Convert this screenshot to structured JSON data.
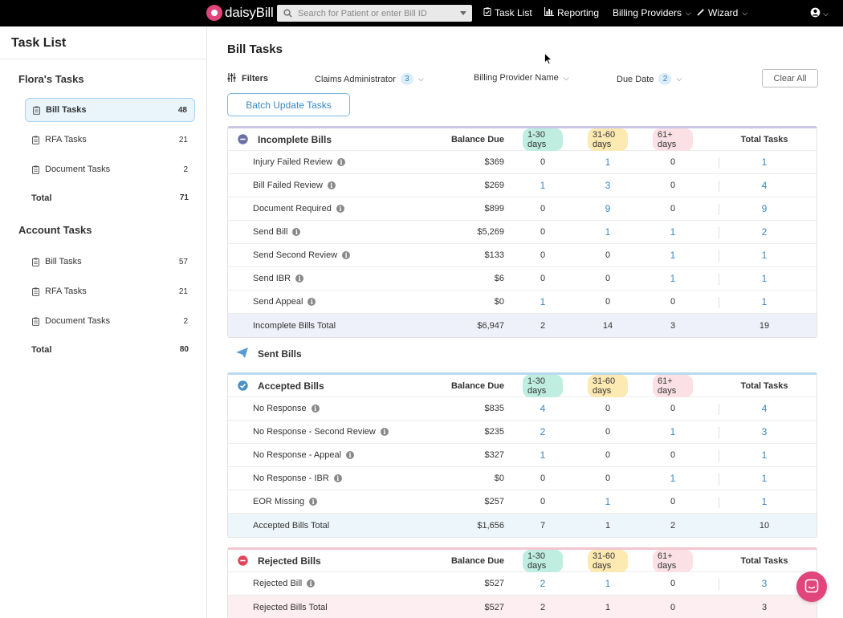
{
  "brand": {
    "name": "daisyBill",
    "color": "#e0457b"
  },
  "search": {
    "placeholder": "Search for Patient or enter Bill ID"
  },
  "nav": {
    "task_list": "Task List",
    "reporting": "Reporting",
    "billing_providers": "Billing Providers",
    "wizard": "Wizard"
  },
  "sidebar": {
    "title": "Task List",
    "floras": {
      "heading": "Flora's Tasks",
      "items": [
        {
          "label": "Bill Tasks",
          "count": "48"
        },
        {
          "label": "RFA Tasks",
          "count": "21"
        },
        {
          "label": "Document Tasks",
          "count": "2"
        }
      ],
      "total_label": "Total",
      "total": "71"
    },
    "account": {
      "heading": "Account Tasks",
      "items": [
        {
          "label": "Bill Tasks",
          "count": "57"
        },
        {
          "label": "RFA Tasks",
          "count": "21"
        },
        {
          "label": "Document Tasks",
          "count": "2"
        }
      ],
      "total_label": "Total",
      "total": "80"
    }
  },
  "main": {
    "title": "Bill Tasks",
    "filters_label": "Filters",
    "filters": [
      {
        "label": "Claims Administrator",
        "badge": "3"
      },
      {
        "label": "Billing Provider Name",
        "badge": ""
      },
      {
        "label": "Due Date",
        "badge": "2"
      }
    ],
    "clear_all": "Clear All",
    "batch_update": "Batch Update Tasks"
  },
  "columns": {
    "balance": "Balance Due",
    "a": "1-30 days",
    "b": "31-60 days",
    "c": "61+ days",
    "total": "Total Tasks"
  },
  "incomplete": {
    "title": "Incomplete Bills",
    "rows": [
      {
        "name": "Injury Failed Review",
        "balance": "$369",
        "a": "0",
        "b": "1",
        "c": "0",
        "total": "1"
      },
      {
        "name": "Bill Failed Review",
        "balance": "$269",
        "a": "1",
        "b": "3",
        "c": "0",
        "total": "4"
      },
      {
        "name": "Document Required",
        "balance": "$899",
        "a": "0",
        "b": "9",
        "c": "0",
        "total": "9"
      },
      {
        "name": "Send Bill",
        "balance": "$5,269",
        "a": "0",
        "b": "1",
        "c": "1",
        "total": "2"
      },
      {
        "name": "Send Second Review",
        "balance": "$133",
        "a": "0",
        "b": "0",
        "c": "1",
        "total": "1"
      },
      {
        "name": "Send IBR",
        "balance": "$6",
        "a": "0",
        "b": "0",
        "c": "1",
        "total": "1"
      },
      {
        "name": "Send Appeal",
        "balance": "$0",
        "a": "1",
        "b": "0",
        "c": "0",
        "total": "1"
      }
    ],
    "total_row": {
      "name": "Incomplete Bills Total",
      "balance": "$6,947",
      "a": "2",
      "b": "14",
      "c": "3",
      "total": "19"
    }
  },
  "sent": {
    "title": "Sent Bills"
  },
  "accepted": {
    "title": "Accepted Bills",
    "rows": [
      {
        "name": "No Response",
        "balance": "$835",
        "a": "4",
        "b": "0",
        "c": "0",
        "total": "4"
      },
      {
        "name": "No Response - Second Review",
        "balance": "$235",
        "a": "2",
        "b": "0",
        "c": "1",
        "total": "3"
      },
      {
        "name": "No Response - Appeal",
        "balance": "$327",
        "a": "1",
        "b": "0",
        "c": "0",
        "total": "1"
      },
      {
        "name": "No Response - IBR",
        "balance": "$0",
        "a": "0",
        "b": "0",
        "c": "1",
        "total": "1"
      },
      {
        "name": "EOR Missing",
        "balance": "$257",
        "a": "0",
        "b": "1",
        "c": "0",
        "total": "1"
      }
    ],
    "total_row": {
      "name": "Accepted Bills Total",
      "balance": "$1,656",
      "a": "7",
      "b": "1",
      "c": "2",
      "total": "10"
    }
  },
  "rejected": {
    "title": "Rejected Bills",
    "rows": [
      {
        "name": "Rejected Bill",
        "balance": "$527",
        "a": "2",
        "b": "1",
        "c": "0",
        "total": "3"
      }
    ],
    "total_row": {
      "name": "Rejected Bills Total",
      "balance": "$527",
      "a": "2",
      "b": "1",
      "c": "0",
      "total": "3"
    }
  },
  "colors": {
    "link": "#3a88c4",
    "pill_1_30": "#bfeee0",
    "pill_31_60": "#fde9b2",
    "pill_61_plus": "#fbe1e5",
    "incomplete_icon": "#6b6fa8",
    "accepted_icon": "#4a90c9",
    "rejected_icon": "#e0455a"
  },
  "icons": {
    "task_list": "clipboard-check-icon",
    "reporting": "bar-chart-icon",
    "wizard": "magic-wand-icon",
    "user": "user-circle-icon",
    "chat": "chat-icon",
    "sent": "paper-plane-icon"
  }
}
